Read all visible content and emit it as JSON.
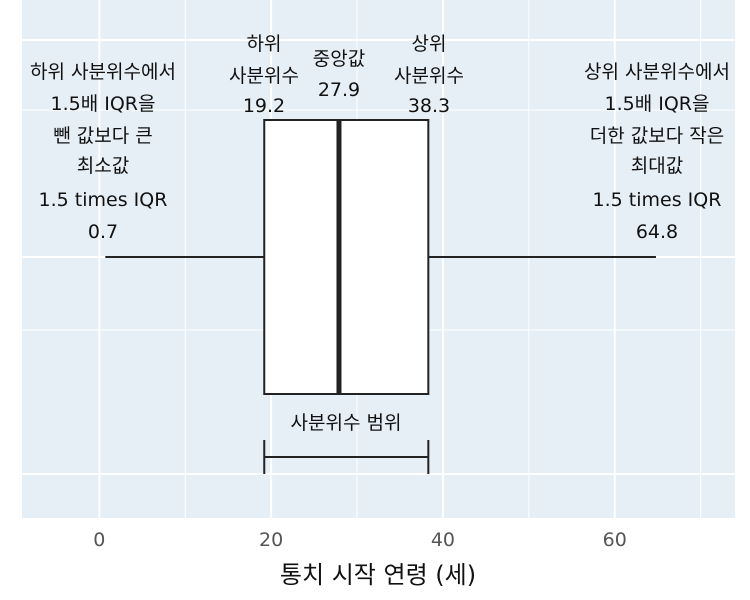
{
  "chart_data": {
    "type": "boxplot",
    "xlabel": "통치 시작 연령 (세)",
    "xlim": [
      -9,
      74
    ],
    "xticks": [
      0,
      20,
      40,
      60
    ],
    "grid": true,
    "box": {
      "whisker_low": 0.7,
      "q1": 19.2,
      "median": 27.9,
      "q3": 38.3,
      "whisker_high": 64.8
    },
    "annotations": {
      "q1": [
        "하위",
        "사분위수",
        "19.2"
      ],
      "median": [
        "중앙값",
        "27.9"
      ],
      "q3": [
        "상위",
        "사분위수",
        "38.3"
      ],
      "whisker_low": [
        "하위 사분위수에서",
        "1.5배 IQR을",
        "뺀 값보다 큰",
        "최소값",
        "1.5 times IQR",
        "0.7"
      ],
      "whisker_high": [
        "상위 사분위수에서",
        "1.5배 IQR을",
        "더한 값보다 작은",
        "최대값",
        "1.5 times IQR",
        "64.8"
      ],
      "iqr": "사분위수 범위"
    }
  }
}
